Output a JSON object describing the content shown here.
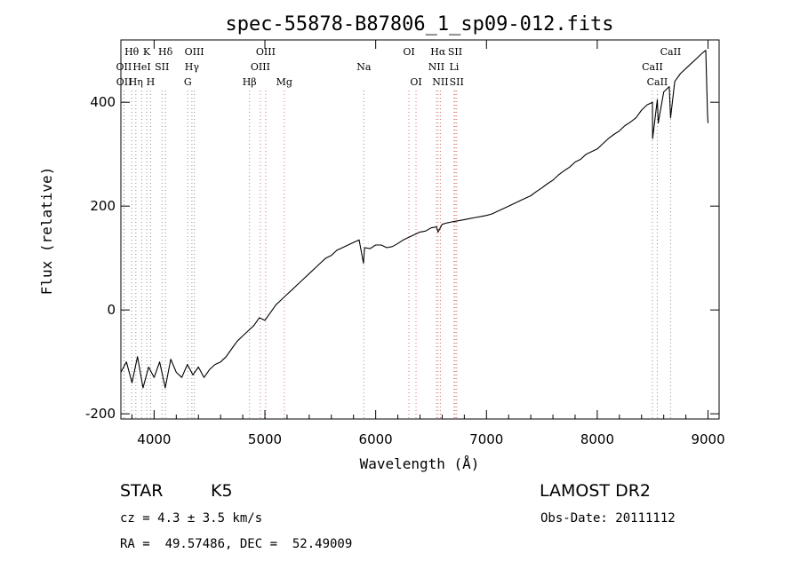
{
  "chart_data": {
    "type": "line",
    "title": "spec-55878-B87806_1_sp09-012.fits",
    "xlabel": "Wavelength (Å)",
    "ylabel": "Flux (relative)",
    "xlim": [
      3700,
      9100
    ],
    "ylim": [
      -210,
      520
    ],
    "xticks": [
      4000,
      5000,
      6000,
      7000,
      8000,
      9000
    ],
    "yticks": [
      -200,
      0,
      200,
      400
    ],
    "series": [
      {
        "x": [
          3700,
          3750,
          3800,
          3850,
          3900,
          3950,
          4000,
          4050,
          4100,
          4150,
          4200,
          4250,
          4300,
          4350,
          4400,
          4450,
          4500,
          4550,
          4600,
          4650,
          4700,
          4750,
          4800,
          4850,
          4900,
          4950,
          5000,
          5050,
          5100,
          5150,
          5200,
          5250,
          5300,
          5350,
          5400,
          5450,
          5500,
          5550,
          5600,
          5650,
          5700,
          5750,
          5800,
          5850,
          5890,
          5900,
          5950,
          6000,
          6050,
          6100,
          6150,
          6200,
          6250,
          6300,
          6350,
          6400,
          6450,
          6500,
          6550,
          6563,
          6600,
          6650,
          6700,
          6750,
          6800,
          6850,
          6900,
          6950,
          7000,
          7050,
          7100,
          7150,
          7200,
          7250,
          7300,
          7350,
          7400,
          7450,
          7500,
          7550,
          7600,
          7650,
          7700,
          7750,
          7800,
          7850,
          7900,
          7950,
          8000,
          8050,
          8100,
          8150,
          8200,
          8250,
          8300,
          8350,
          8400,
          8450,
          8498,
          8500,
          8542,
          8550,
          8600,
          8650,
          8662,
          8700,
          8750,
          8800,
          8850,
          8900,
          8950,
          8980,
          8995,
          9000
        ],
        "y": [
          -120,
          -100,
          -140,
          -90,
          -150,
          -110,
          -130,
          -100,
          -150,
          -95,
          -120,
          -130,
          -105,
          -125,
          -110,
          -130,
          -115,
          -105,
          -100,
          -90,
          -75,
          -60,
          -50,
          -40,
          -30,
          -15,
          -20,
          -5,
          10,
          20,
          30,
          40,
          50,
          60,
          70,
          80,
          90,
          100,
          105,
          115,
          120,
          125,
          130,
          135,
          90,
          120,
          118,
          125,
          125,
          120,
          122,
          128,
          135,
          140,
          145,
          150,
          152,
          158,
          160,
          150,
          165,
          168,
          170,
          172,
          174,
          176,
          178,
          180,
          182,
          185,
          190,
          195,
          200,
          205,
          210,
          215,
          220,
          228,
          235,
          243,
          250,
          260,
          268,
          275,
          285,
          290,
          300,
          305,
          310,
          320,
          330,
          338,
          345,
          355,
          362,
          370,
          385,
          395,
          400,
          330,
          405,
          360,
          420,
          430,
          370,
          440,
          455,
          465,
          475,
          485,
          495,
          500,
          380,
          360
        ]
      }
    ],
    "line_markers": [
      {
        "label": "Hθ",
        "x": 3798,
        "row": 0,
        "color": "#909090"
      },
      {
        "label": "K",
        "x": 3933,
        "row": 0,
        "color": "#909090"
      },
      {
        "label": "Hδ",
        "x": 4102,
        "row": 0,
        "color": "#909090"
      },
      {
        "label": "OII",
        "x": 3727,
        "row": 1,
        "color": "#909090"
      },
      {
        "label": "HeI",
        "x": 3889,
        "row": 1,
        "color": "#909090"
      },
      {
        "label": "SII",
        "x": 4071,
        "row": 1,
        "color": "#909090"
      },
      {
        "label": "OII",
        "x": 3729,
        "row": 2,
        "color": "#909090"
      },
      {
        "label": "Hη",
        "x": 3835,
        "row": 2,
        "color": "#909090"
      },
      {
        "label": "H",
        "x": 3968,
        "row": 2,
        "color": "#909090"
      },
      {
        "label": "OIII",
        "x": 4363,
        "row": 0,
        "color": "#909090"
      },
      {
        "label": "Hγ",
        "x": 4341,
        "row": 1,
        "color": "#909090"
      },
      {
        "label": "G",
        "x": 4304,
        "row": 2,
        "color": "#909090"
      },
      {
        "label": "OIII",
        "x": 5007,
        "row": 0,
        "color": "#d07070"
      },
      {
        "label": "OIII",
        "x": 4959,
        "row": 1,
        "color": "#d07070"
      },
      {
        "label": "Hβ",
        "x": 4861,
        "row": 2,
        "color": "#909090"
      },
      {
        "label": "Mg",
        "x": 5175,
        "row": 2,
        "color": "#d07070"
      },
      {
        "label": "Na",
        "x": 5893,
        "row": 1,
        "color": "#909090"
      },
      {
        "label": "OI",
        "x": 6300,
        "row": 0,
        "color": "#d07070"
      },
      {
        "label": "OI",
        "x": 6364,
        "row": 2,
        "color": "#d07070"
      },
      {
        "label": "Hα",
        "x": 6563,
        "row": 0,
        "color": "#d07070"
      },
      {
        "label": "SII",
        "x": 6717,
        "row": 0,
        "color": "#d07070"
      },
      {
        "label": "NII",
        "x": 6548,
        "row": 1,
        "color": "#d07070"
      },
      {
        "label": "Li",
        "x": 6708,
        "row": 1,
        "color": "#d07070"
      },
      {
        "label": "NII",
        "x": 6584,
        "row": 2,
        "color": "#d07070"
      },
      {
        "label": "SII",
        "x": 6731,
        "row": 2,
        "color": "#d07070"
      },
      {
        "label": "CaII",
        "x": 8662,
        "row": 0,
        "color": "#909090"
      },
      {
        "label": "CaII",
        "x": 8498,
        "row": 1,
        "color": "#909090"
      },
      {
        "label": "CaII",
        "x": 8542,
        "row": 2,
        "color": "#909090"
      }
    ]
  },
  "info": {
    "object_class": "STAR",
    "subclass": "K5",
    "survey": "LAMOST DR2",
    "cz": "cz = 4.3 ± 3.5 km/s",
    "obs_date": "Obs-Date: 20111112",
    "coords": "RA =  49.57486, DEC =  52.49009"
  }
}
